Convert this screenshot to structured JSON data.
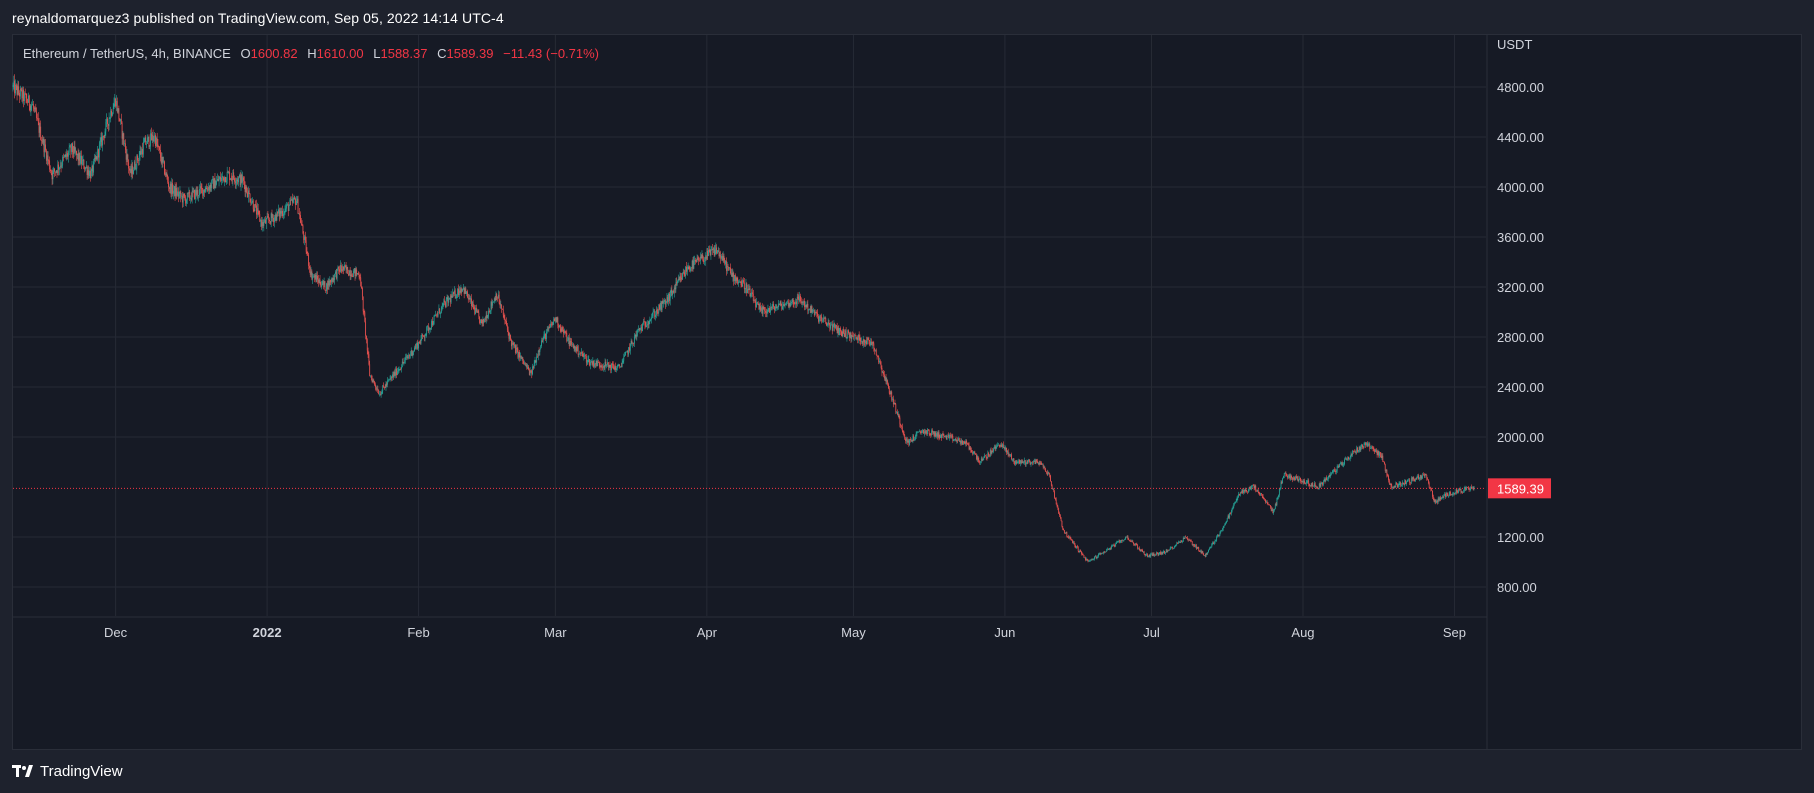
{
  "header": {
    "published": "reynaldomarquez3 published on TradingView.com, Sep 05, 2022 14:14 UTC-4"
  },
  "legend": {
    "symbol": "Ethereum / TetherUS, 4h, BINANCE",
    "o_label": "O",
    "o_value": "1600.82",
    "h_label": "H",
    "h_value": "1610.00",
    "l_label": "L",
    "l_value": "1588.37",
    "c_label": "C",
    "c_value": "1589.39",
    "change": "−11.43 (−0.71%)"
  },
  "footer": {
    "brand": "TradingView"
  },
  "colors": {
    "up": "#26a69a",
    "down": "#ef5350",
    "price_tag": "#f23645",
    "background": "#161a25",
    "grid": "#262a35"
  },
  "chart_data": {
    "type": "candlestick",
    "symbol": "Ethereum / TetherUS",
    "interval": "4h",
    "exchange": "BINANCE",
    "unit": "USDT",
    "x_range": [
      "2021-11-10",
      "2022-09-05"
    ],
    "ylim": [
      600,
      5100
    ],
    "y_ticks": [
      "4800.00",
      "4400.00",
      "4000.00",
      "3600.00",
      "3200.00",
      "2800.00",
      "2400.00",
      "2000.00",
      "1200.00",
      "800.00"
    ],
    "x_ticks": [
      {
        "label": "Dec",
        "date": "2021-12-01"
      },
      {
        "label": "2022",
        "date": "2022-01-01",
        "bold": true
      },
      {
        "label": "Feb",
        "date": "2022-02-01"
      },
      {
        "label": "Mar",
        "date": "2022-03-01"
      },
      {
        "label": "Apr",
        "date": "2022-04-01"
      },
      {
        "label": "May",
        "date": "2022-05-01"
      },
      {
        "label": "Jun",
        "date": "2022-06-01"
      },
      {
        "label": "Jul",
        "date": "2022-07-01"
      },
      {
        "label": "Aug",
        "date": "2022-08-01"
      },
      {
        "label": "Sep",
        "date": "2022-09-01"
      }
    ],
    "last_price": "1589.39",
    "close_path": [
      {
        "date": "2021-11-10",
        "close": 4800
      },
      {
        "date": "2021-11-14",
        "close": 4650
      },
      {
        "date": "2021-11-18",
        "close": 4100
      },
      {
        "date": "2021-11-22",
        "close": 4300
      },
      {
        "date": "2021-11-26",
        "close": 4100
      },
      {
        "date": "2021-11-30",
        "close": 4600
      },
      {
        "date": "2021-12-01",
        "close": 4700
      },
      {
        "date": "2021-12-04",
        "close": 4100
      },
      {
        "date": "2021-12-07",
        "close": 4350
      },
      {
        "date": "2021-12-09",
        "close": 4400
      },
      {
        "date": "2021-12-12",
        "close": 4000
      },
      {
        "date": "2021-12-15",
        "close": 3900
      },
      {
        "date": "2021-12-20",
        "close": 4000
      },
      {
        "date": "2021-12-24",
        "close": 4100
      },
      {
        "date": "2021-12-27",
        "close": 4050
      },
      {
        "date": "2021-12-31",
        "close": 3700
      },
      {
        "date": "2022-01-04",
        "close": 3800
      },
      {
        "date": "2022-01-07",
        "close": 3900
      },
      {
        "date": "2022-01-10",
        "close": 3300
      },
      {
        "date": "2022-01-13",
        "close": 3200
      },
      {
        "date": "2022-01-16",
        "close": 3350
      },
      {
        "date": "2022-01-20",
        "close": 3300
      },
      {
        "date": "2022-01-22",
        "close": 2500
      },
      {
        "date": "2022-01-24",
        "close": 2350
      },
      {
        "date": "2022-01-28",
        "close": 2550
      },
      {
        "date": "2022-02-01",
        "close": 2750
      },
      {
        "date": "2022-02-06",
        "close": 3050
      },
      {
        "date": "2022-02-10",
        "close": 3200
      },
      {
        "date": "2022-02-14",
        "close": 2900
      },
      {
        "date": "2022-02-17",
        "close": 3150
      },
      {
        "date": "2022-02-20",
        "close": 2750
      },
      {
        "date": "2022-02-24",
        "close": 2500
      },
      {
        "date": "2022-02-26",
        "close": 2750
      },
      {
        "date": "2022-03-01",
        "close": 2950
      },
      {
        "date": "2022-03-04",
        "close": 2750
      },
      {
        "date": "2022-03-08",
        "close": 2600
      },
      {
        "date": "2022-03-14",
        "close": 2550
      },
      {
        "date": "2022-03-18",
        "close": 2850
      },
      {
        "date": "2022-03-24",
        "close": 3100
      },
      {
        "date": "2022-03-28",
        "close": 3350
      },
      {
        "date": "2022-04-03",
        "close": 3500
      },
      {
        "date": "2022-04-06",
        "close": 3300
      },
      {
        "date": "2022-04-09",
        "close": 3200
      },
      {
        "date": "2022-04-12",
        "close": 3000
      },
      {
        "date": "2022-04-16",
        "close": 3050
      },
      {
        "date": "2022-04-20",
        "close": 3100
      },
      {
        "date": "2022-04-24",
        "close": 2950
      },
      {
        "date": "2022-04-28",
        "close": 2850
      },
      {
        "date": "2022-05-01",
        "close": 2800
      },
      {
        "date": "2022-05-05",
        "close": 2750
      },
      {
        "date": "2022-05-09",
        "close": 2300
      },
      {
        "date": "2022-05-12",
        "close": 1950
      },
      {
        "date": "2022-05-15",
        "close": 2050
      },
      {
        "date": "2022-05-20",
        "close": 2000
      },
      {
        "date": "2022-05-24",
        "close": 1950
      },
      {
        "date": "2022-05-27",
        "close": 1800
      },
      {
        "date": "2022-05-31",
        "close": 1950
      },
      {
        "date": "2022-06-03",
        "close": 1800
      },
      {
        "date": "2022-06-08",
        "close": 1800
      },
      {
        "date": "2022-06-10",
        "close": 1700
      },
      {
        "date": "2022-06-13",
        "close": 1250
      },
      {
        "date": "2022-06-16",
        "close": 1100
      },
      {
        "date": "2022-06-18",
        "close": 1000
      },
      {
        "date": "2022-06-22",
        "close": 1100
      },
      {
        "date": "2022-06-26",
        "close": 1200
      },
      {
        "date": "2022-06-30",
        "close": 1050
      },
      {
        "date": "2022-07-04",
        "close": 1080
      },
      {
        "date": "2022-07-08",
        "close": 1200
      },
      {
        "date": "2022-07-12",
        "close": 1050
      },
      {
        "date": "2022-07-16",
        "close": 1300
      },
      {
        "date": "2022-07-19",
        "close": 1550
      },
      {
        "date": "2022-07-22",
        "close": 1600
      },
      {
        "date": "2022-07-26",
        "close": 1400
      },
      {
        "date": "2022-07-28",
        "close": 1700
      },
      {
        "date": "2022-08-01",
        "close": 1650
      },
      {
        "date": "2022-08-04",
        "close": 1600
      },
      {
        "date": "2022-08-08",
        "close": 1750
      },
      {
        "date": "2022-08-12",
        "close": 1900
      },
      {
        "date": "2022-08-14",
        "close": 1950
      },
      {
        "date": "2022-08-17",
        "close": 1850
      },
      {
        "date": "2022-08-19",
        "close": 1600
      },
      {
        "date": "2022-08-23",
        "close": 1650
      },
      {
        "date": "2022-08-26",
        "close": 1700
      },
      {
        "date": "2022-08-28",
        "close": 1480
      },
      {
        "date": "2022-08-31",
        "close": 1550
      },
      {
        "date": "2022-09-02",
        "close": 1570
      },
      {
        "date": "2022-09-05",
        "close": 1589.39
      }
    ]
  }
}
